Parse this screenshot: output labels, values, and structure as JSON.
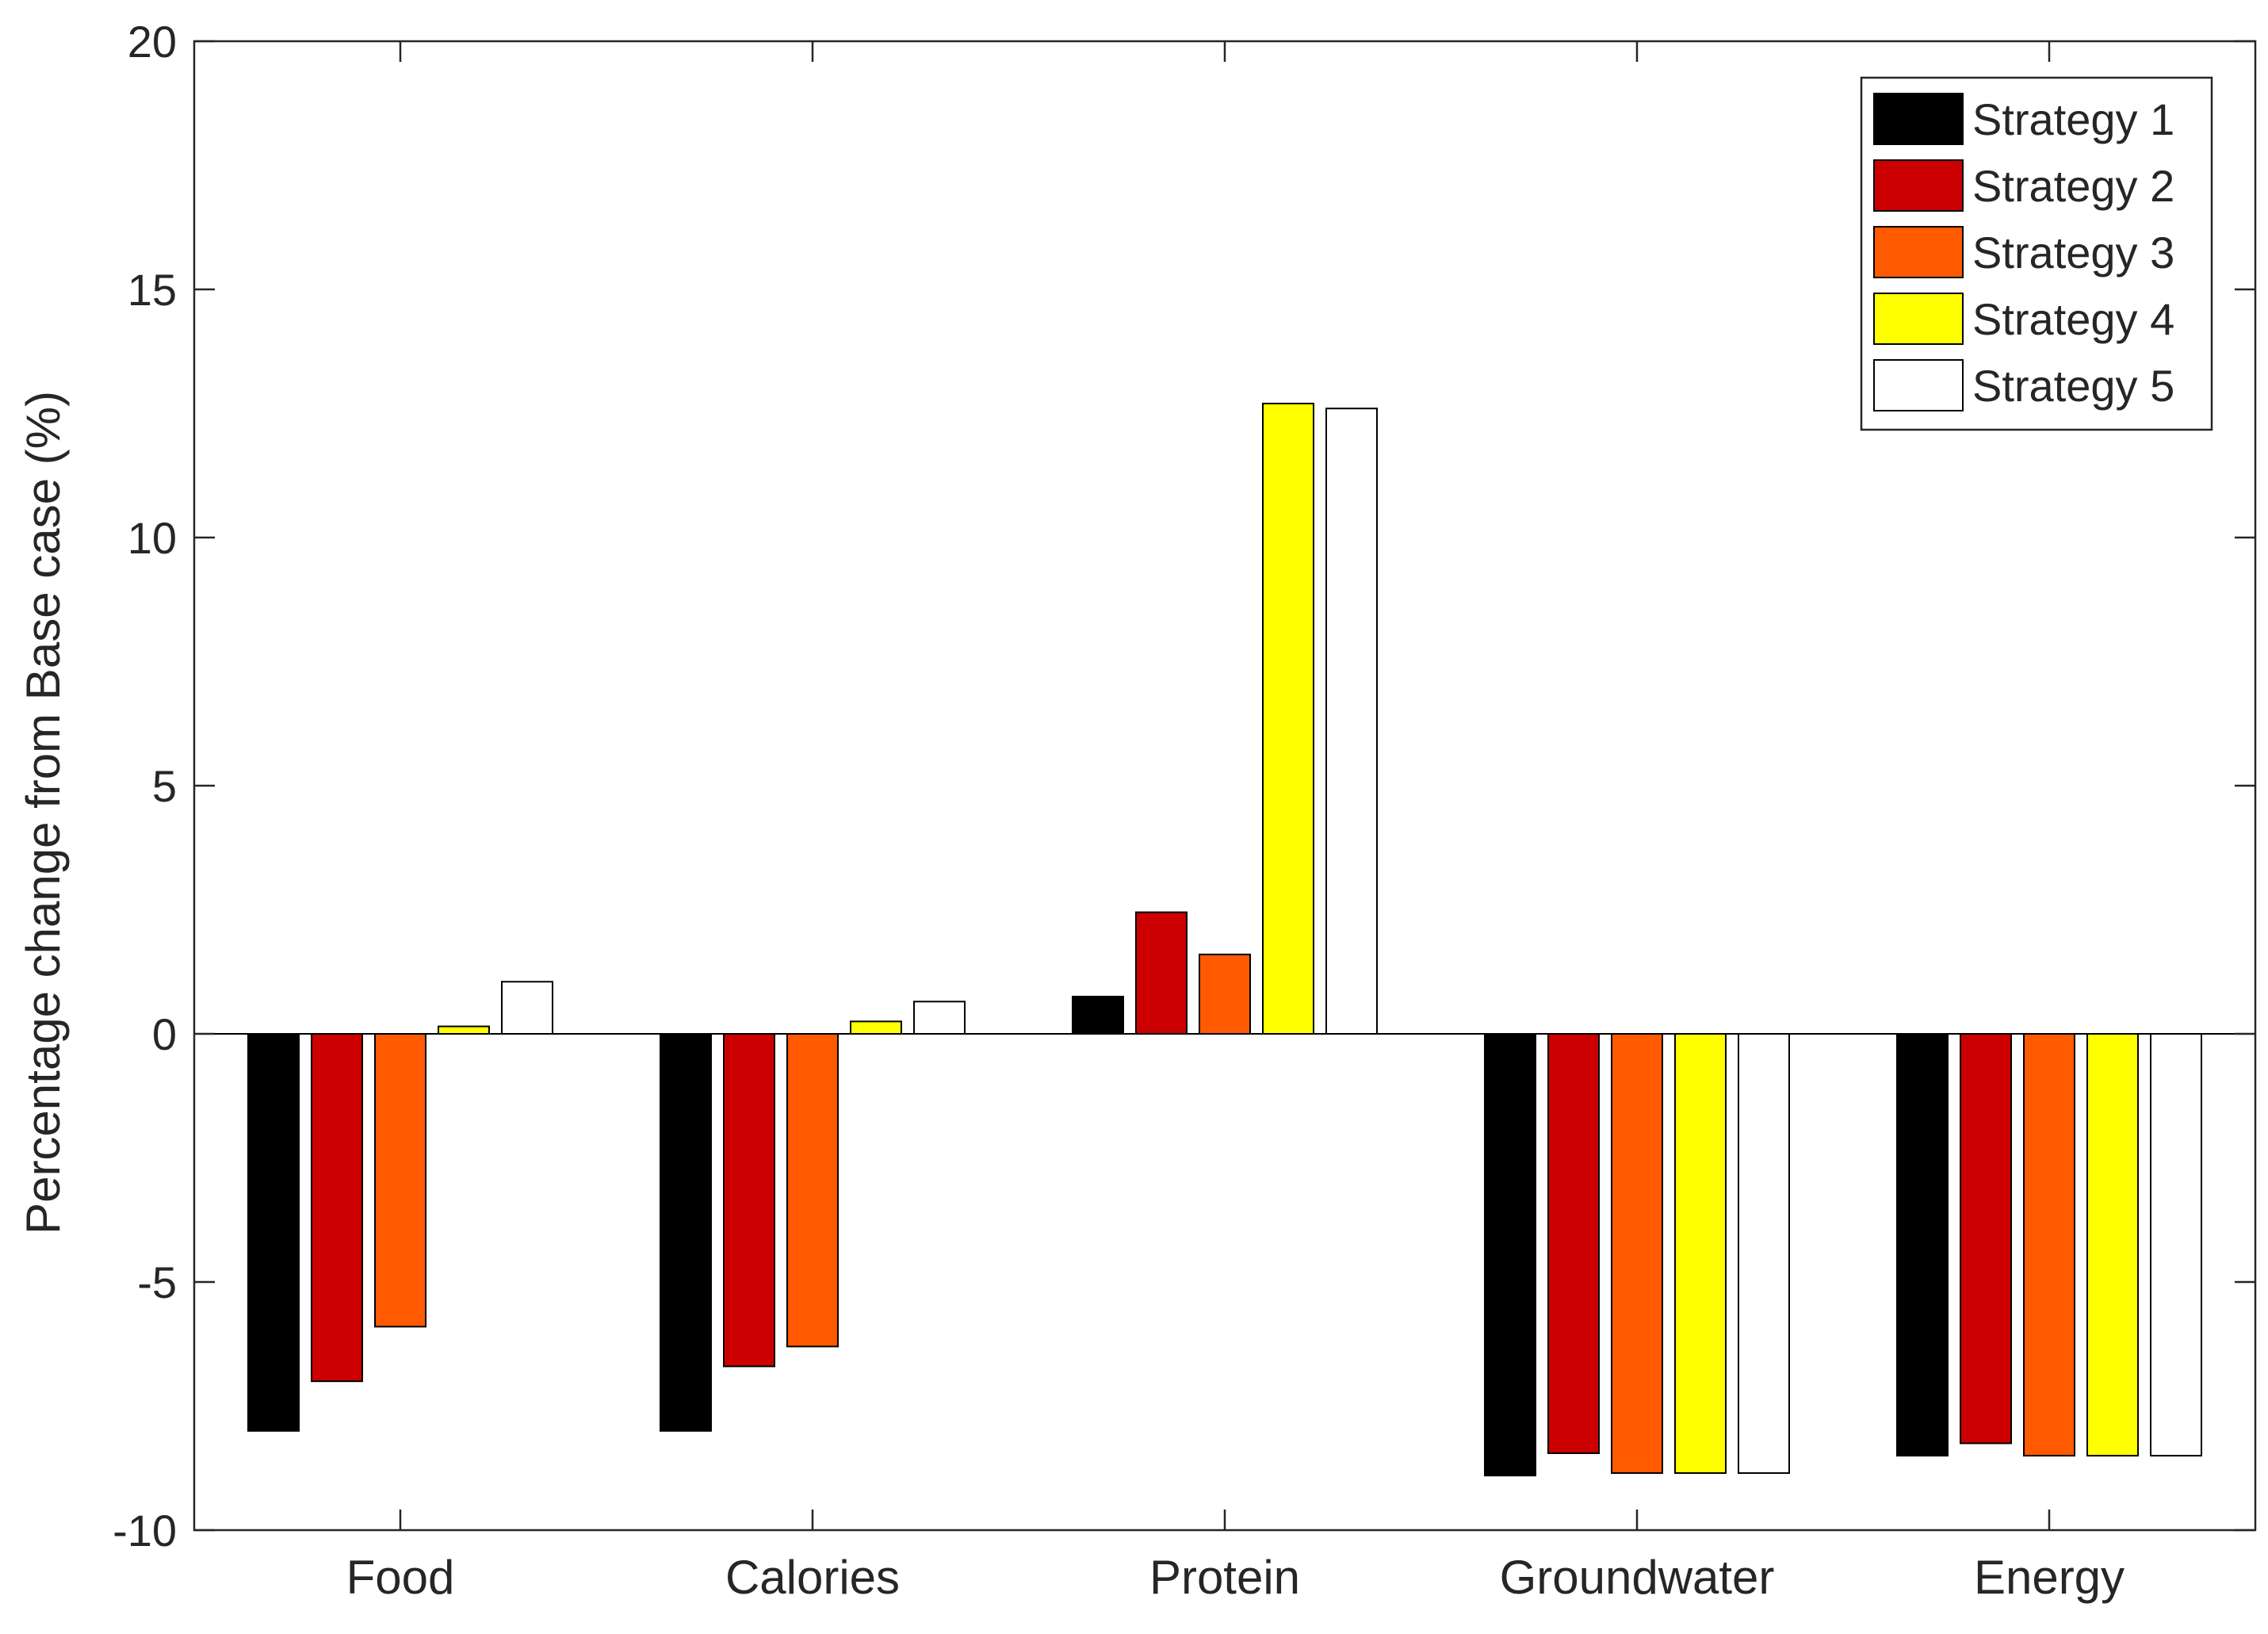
{
  "chart_data": {
    "type": "bar",
    "title": "",
    "xlabel": "",
    "ylabel": "Percentage change from Base case (%)",
    "ylim": [
      -10,
      20
    ],
    "yticks": [
      -10,
      -5,
      0,
      5,
      10,
      15,
      20
    ],
    "ytick_labels": [
      "-10",
      "-5",
      "0",
      "5",
      "10",
      "15",
      "20"
    ],
    "categories": [
      "Food",
      "Calories",
      "Protein",
      "Groundwater",
      "Energy"
    ],
    "grid": false,
    "legend_position": "top-right",
    "series": [
      {
        "name": "Strategy 1",
        "color": "#000000",
        "values": [
          -8.0,
          -8.0,
          0.75,
          -8.9,
          -8.5
        ]
      },
      {
        "name": "Strategy 2",
        "color": "#cc0000",
        "values": [
          -7.0,
          -6.7,
          2.45,
          -8.45,
          -8.25
        ]
      },
      {
        "name": "Strategy 3",
        "color": "#ff5a00",
        "values": [
          -5.9,
          -6.3,
          1.6,
          -8.85,
          -8.5
        ]
      },
      {
        "name": "Strategy 4",
        "color": "#ffff00",
        "values": [
          0.15,
          0.25,
          12.7,
          -8.85,
          -8.5
        ]
      },
      {
        "name": "Strategy 5",
        "color": "#ffffff",
        "values": [
          1.05,
          0.65,
          12.6,
          -8.85,
          -8.5
        ]
      }
    ]
  }
}
